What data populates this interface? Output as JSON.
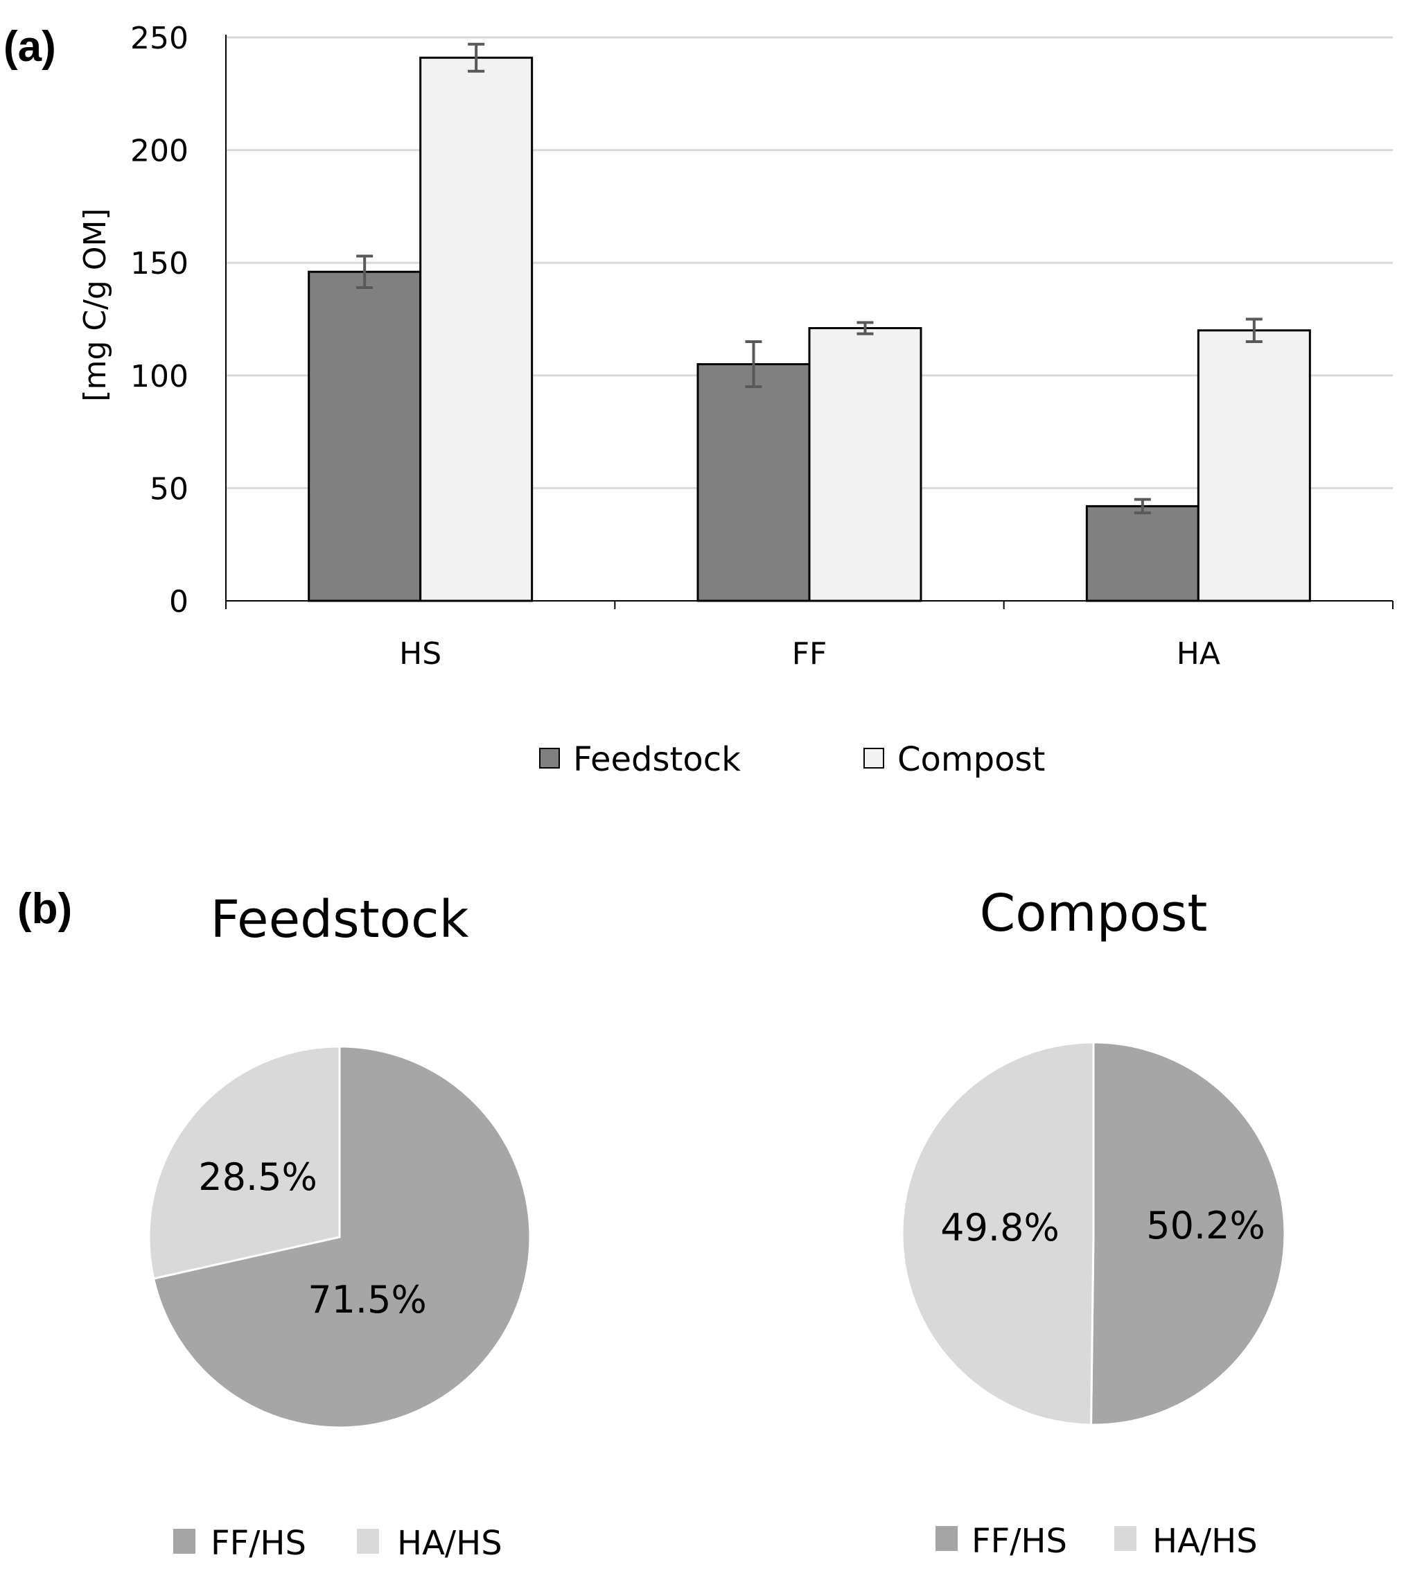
{
  "chart_data": [
    {
      "type": "bar",
      "panel_label": "(a)",
      "ylabel": "[mg C/g OM]",
      "xlabel": "",
      "ylim": [
        0,
        250
      ],
      "yticks": [
        0,
        50,
        100,
        150,
        200,
        250
      ],
      "grid": true,
      "categories": [
        "HS",
        "FF",
        "HA"
      ],
      "series": [
        {
          "name": "Feedstock",
          "values": [
            146,
            105,
            42
          ],
          "errors": [
            7,
            10,
            3
          ],
          "color": "#808080"
        },
        {
          "name": "Compost",
          "values": [
            241,
            121,
            120
          ],
          "errors": [
            6,
            2.5,
            5
          ],
          "color": "#f2f2f2"
        }
      ],
      "legend_position": "bottom"
    },
    {
      "type": "pie",
      "panel_label": "(b)",
      "title": "Feedstock",
      "labels": [
        "FF/HS",
        "HA/HS"
      ],
      "values": [
        71.5,
        28.5
      ],
      "display_labels": [
        "71.5%",
        "28.5%"
      ],
      "colors": [
        "#a6a6a6",
        "#d9d9d9"
      ],
      "legend_position": "bottom"
    },
    {
      "type": "pie",
      "title": "Compost",
      "labels": [
        "FF/HS",
        "HA/HS"
      ],
      "values": [
        50.2,
        49.8
      ],
      "display_labels": [
        "50.2%",
        "49.8%"
      ],
      "colors": [
        "#a6a6a6",
        "#d9d9d9"
      ],
      "legend_position": "bottom"
    }
  ]
}
